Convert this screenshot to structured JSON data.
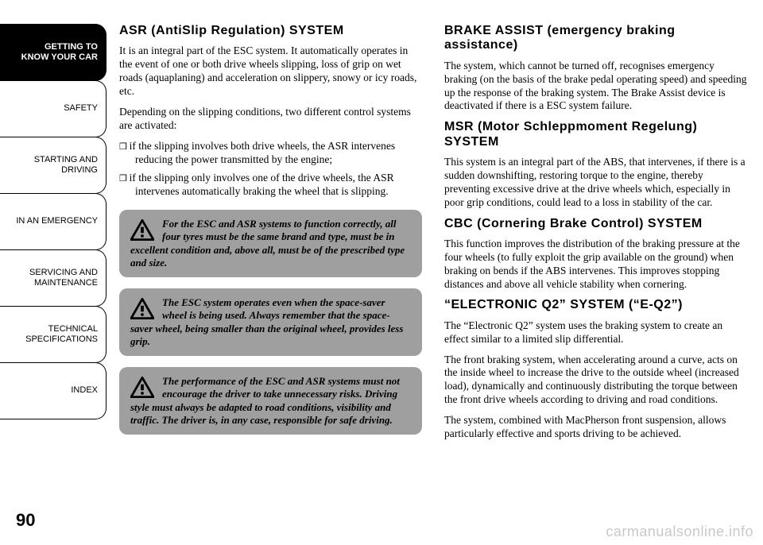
{
  "nav": {
    "items": [
      "GETTING TO\nKNOW YOUR CAR",
      "SAFETY",
      "STARTING AND\nDRIVING",
      "IN AN EMERGENCY",
      "SERVICING AND\nMAINTENANCE",
      "TECHNICAL\nSPECIFICATIONS",
      "INDEX"
    ],
    "active_index": 0
  },
  "left": {
    "h_asr": "ASR (AntiSlip Regulation) SYSTEM",
    "p1": "It is an integral part of the ESC system. It automatically operates in the event of one or both drive wheels slipping, loss of grip on wet roads (aquaplaning) and acceleration on slippery, snowy or icy roads, etc.",
    "p2": "Depending on the slipping conditions, two different control systems are activated:",
    "b1": "if the slipping involves both drive wheels, the ASR intervenes reducing the power transmitted by the engine;",
    "b2": "if the slipping only involves one of the drive wheels, the ASR intervenes automatically braking the wheel that is slipping.",
    "w1": "For the ESC and ASR systems to function correctly, all four tyres must be the same brand and type, must be in excellent condition and, above all, must be of the prescribed type and size.",
    "w2": "The ESC system operates even when the space-saver wheel is being used. Always remember that the space-saver wheel, being smaller than the original wheel, provides less grip.",
    "w3": "The performance of the ESC and ASR systems must not encourage the driver to take unnecessary risks. Driving style must always be adapted to road conditions, visibility and traffic. The driver is, in any case, responsible for safe driving."
  },
  "right": {
    "h_ba": "BRAKE ASSIST (emergency braking assistance)",
    "p_ba": "The system, which cannot be turned off, recognises emergency braking (on the basis of the brake pedal operating speed) and speeding up the response of the braking system. The Brake Assist device is deactivated if there is a ESC system failure.",
    "h_msr": "MSR (Motor Schleppmoment Regelung) SYSTEM",
    "p_msr": "This system is an integral part of the ABS, that intervenes, if there is a sudden downshifting, restoring torque to the engine, thereby preventing excessive drive at the drive wheels which, especially in poor grip conditions, could lead to a loss in stability of the car.",
    "h_cbc": "CBC (Cornering Brake Control) SYSTEM",
    "p_cbc": "This function improves the distribution of the braking pressure at the four wheels (to fully exploit the grip available on the ground) when braking on bends if the ABS intervenes. This improves stopping distances and above all vehicle stability when cornering.",
    "h_eq2": "“ELECTRONIC Q2” SYSTEM (“E-Q2”)",
    "p_eq2a": "The “Electronic Q2” system uses the braking system to create an effect similar to a limited slip differential.",
    "p_eq2b": "The front braking system, when accelerating around a curve, acts on the inside wheel to increase the drive to the outside wheel (increased load), dynamically and continuously distributing the torque between the front drive wheels according to driving and road conditions.",
    "p_eq2c": "The system, combined with MacPherson front suspension, allows particularly effective and sports driving to be achieved."
  },
  "page_number": "90",
  "watermark": "carmanualsonline.info",
  "colors": {
    "warn_bg": "#9f9f9f",
    "watermark": "rgba(0,0,0,0.22)"
  }
}
